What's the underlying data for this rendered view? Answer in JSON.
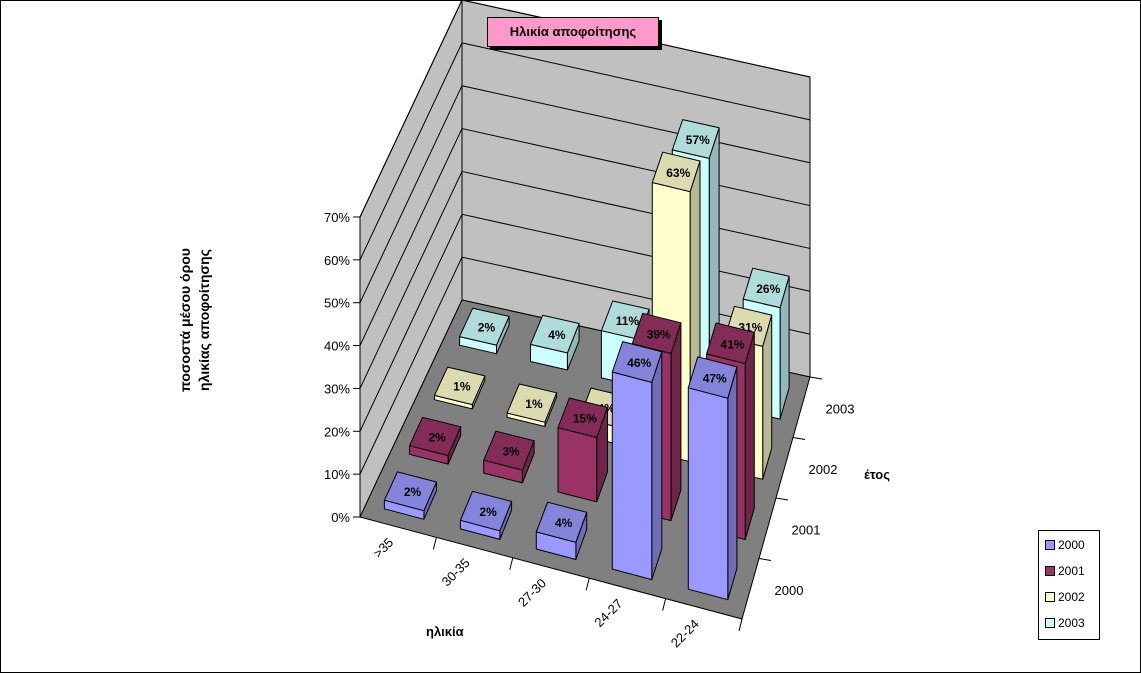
{
  "chart_data": {
    "type": "bar",
    "subtype": "3d-column",
    "title": "Ηλικία αποφοίτησης",
    "ylabel_lines": [
      "ποσοστά μέσου όρου",
      "ηλικίας αποφοίτησης"
    ],
    "xlabel": "ηλικία",
    "zlabel": "έτος",
    "categories": [
      ">35",
      "30-35",
      "27-30",
      "24-27",
      "22-24"
    ],
    "yticks": [
      "0%",
      "10%",
      "20%",
      "30%",
      "40%",
      "50%",
      "60%",
      "70%"
    ],
    "ylim": [
      0,
      70
    ],
    "grid": true,
    "legend_placement": "bottom-right",
    "series": [
      {
        "name": "2000",
        "color": "#9999ff",
        "values": [
          2,
          2,
          4,
          46,
          47
        ],
        "labels": [
          "2%",
          "2%",
          "4%",
          "46%",
          "47%"
        ]
      },
      {
        "name": "2001",
        "color": "#993366",
        "values": [
          2,
          3,
          15,
          39,
          41
        ],
        "labels": [
          "2%",
          "3%",
          "15%",
          "39%",
          "41%"
        ]
      },
      {
        "name": "2002",
        "color": "#ffffcc",
        "values": [
          1,
          1,
          4,
          63,
          31
        ],
        "labels": [
          "1%",
          "1%",
          "4%",
          "63%",
          "31%"
        ]
      },
      {
        "name": "2003",
        "color": "#ccffff",
        "values": [
          2,
          4,
          11,
          57,
          26
        ],
        "labels": [
          "2%",
          "4%",
          "11%",
          "57%",
          "26%"
        ]
      }
    ]
  }
}
